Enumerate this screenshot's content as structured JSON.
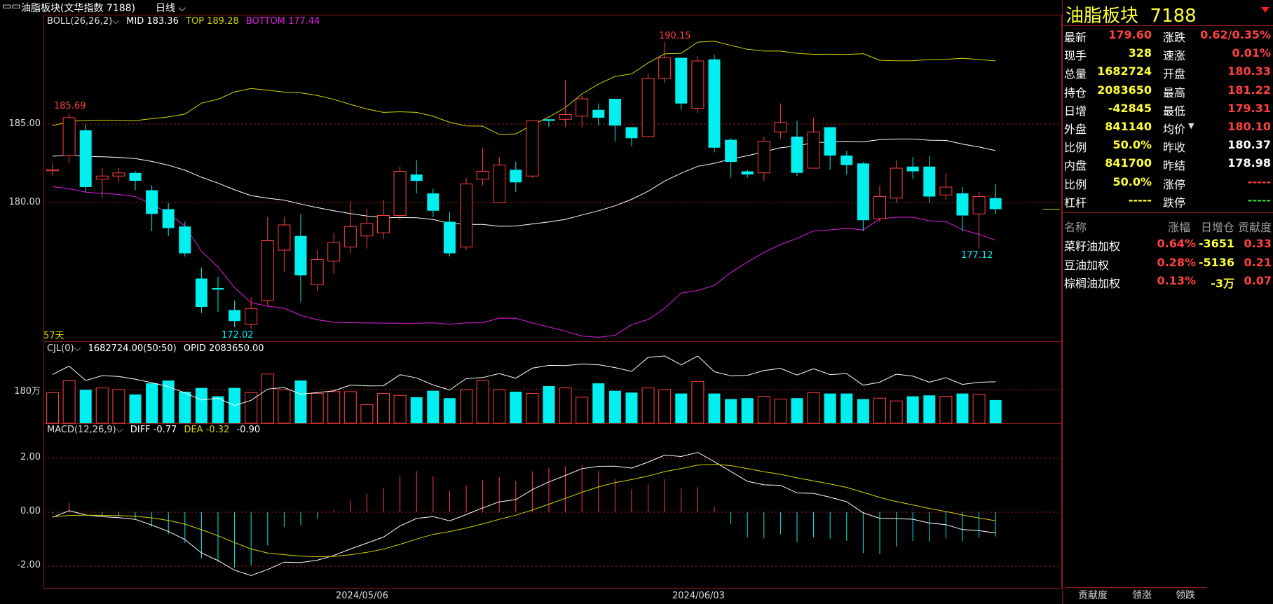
{
  "topbar": {
    "title": "油脂板块(文华指数 7188)",
    "period": "日线"
  },
  "main": {
    "boll_label": "BOLL(26,26,2)",
    "mid": "MID 183.36",
    "top": "TOP 189.28",
    "bottom": "BOTTOM 177.44",
    "y_ticks": [
      "185.00",
      "180.00"
    ],
    "annotations": {
      "high_label": "185.69",
      "peak_label": "190.15",
      "low_label": "172.02",
      "recent_low_label": "177.12",
      "days_label": "57天"
    }
  },
  "volume": {
    "label": "CJL(0)",
    "value": "1682724.00(50:50)",
    "opid": "OPID 2083650.00",
    "y_tick": "180万"
  },
  "macd": {
    "label": "MACD(12,26,9)",
    "diff": "DIFF -0.77",
    "dea": "DEA -0.32",
    "macd": "-0.90",
    "y_ticks": [
      "2.00",
      "0.00",
      "-2.00"
    ]
  },
  "x_axis": {
    "ticks": [
      "2024/05/06",
      "2024/06/03"
    ]
  },
  "quote": {
    "name": "油脂板块",
    "code": "7188",
    "left": [
      {
        "k": "最新",
        "v": "179.60",
        "c": "red"
      },
      {
        "k": "现手",
        "v": "328",
        "c": "yellow"
      },
      {
        "k": "总量",
        "v": "1682724",
        "c": "yellow"
      },
      {
        "k": "持仓",
        "v": "2083650",
        "c": "yellow"
      },
      {
        "k": "日增",
        "v": "-42845",
        "c": "yellow"
      },
      {
        "k": "外盘",
        "v": "841140",
        "c": "yellow"
      },
      {
        "k": "比例",
        "v": "50.0%",
        "c": "yellow"
      },
      {
        "k": "内盘",
        "v": "841700",
        "c": "yellow"
      },
      {
        "k": "比例",
        "v": "50.0%",
        "c": "yellow"
      },
      {
        "k": "杠杆",
        "v": "-----",
        "c": "yellow"
      }
    ],
    "right": [
      {
        "k": "涨跌",
        "v": "0.62/0.35%",
        "c": "red"
      },
      {
        "k": "速涨",
        "v": "0.01%",
        "c": "red"
      },
      {
        "k": "开盘",
        "v": "180.33",
        "c": "red"
      },
      {
        "k": "最高",
        "v": "181.22",
        "c": "red"
      },
      {
        "k": "最低",
        "v": "179.31",
        "c": "red"
      },
      {
        "k": "均价",
        "v": "180.10",
        "c": "red"
      },
      {
        "k": "昨收",
        "v": "180.37",
        "c": "white"
      },
      {
        "k": "昨结",
        "v": "178.98",
        "c": "white"
      },
      {
        "k": "涨停",
        "v": "-----",
        "c": "red"
      },
      {
        "k": "跌停",
        "v": "-----",
        "c": "green"
      }
    ]
  },
  "components": {
    "headers": [
      "名称",
      "涨幅",
      "日增仓",
      "贡献度"
    ],
    "rows": [
      {
        "name": "菜籽油加权",
        "chg": "0.64%",
        "oi": "-3651",
        "contrib": "0.33"
      },
      {
        "name": "豆油加权",
        "chg": "0.28%",
        "oi": "-5136",
        "contrib": "0.21"
      },
      {
        "name": "棕榈油加权",
        "chg": "0.13%",
        "oi": "-3万",
        "contrib": "0.07"
      }
    ]
  },
  "tabs": [
    "贡献度",
    "领涨",
    "领跌"
  ],
  "colors": {
    "up": "#ff4040",
    "down": "#00f0f0",
    "mid_line": "#ffffff",
    "top_line": "#d4d400",
    "bottom_line": "#e020e0",
    "dea_line": "#d4d400",
    "frame": "#8b1a1a"
  },
  "chart_data": [
    {
      "type": "candlestick",
      "title": "BOLL(26,26,2)",
      "ylim": [
        170.5,
        191.5
      ],
      "y_ticks": [
        185,
        180
      ],
      "candles": [
        [
          182.1,
          182.1,
          182.5,
          181.7
        ],
        [
          183.0,
          185.4,
          185.7,
          182.5
        ],
        [
          184.6,
          181.0,
          185.0,
          180.7
        ],
        [
          181.5,
          181.7,
          182.2,
          180.3
        ],
        [
          181.7,
          181.9,
          182.2,
          181.3
        ],
        [
          181.9,
          181.4,
          182.0,
          180.8
        ],
        [
          180.8,
          179.3,
          181.1,
          178.2
        ],
        [
          179.6,
          178.4,
          180.0,
          177.9
        ],
        [
          178.5,
          176.8,
          178.8,
          176.6
        ],
        [
          175.2,
          173.4,
          175.9,
          173.0
        ],
        [
          174.6,
          174.5,
          175.3,
          173.1
        ],
        [
          173.2,
          172.5,
          173.8,
          172.1
        ],
        [
          172.3,
          173.3,
          174.0,
          172.0
        ],
        [
          173.8,
          177.6,
          179.1,
          173.5
        ],
        [
          177.0,
          178.6,
          179.1,
          175.6
        ],
        [
          177.9,
          175.4,
          179.3,
          173.7
        ],
        [
          174.8,
          176.4,
          177.0,
          174.4
        ],
        [
          176.3,
          177.5,
          178.1,
          175.5
        ],
        [
          177.2,
          178.5,
          180.1,
          176.8
        ],
        [
          177.9,
          178.7,
          179.6,
          177.1
        ],
        [
          178.1,
          179.2,
          180.2,
          177.7
        ],
        [
          179.2,
          182.0,
          182.3,
          178.9
        ],
        [
          181.8,
          181.4,
          182.7,
          180.6
        ],
        [
          180.6,
          179.5,
          180.9,
          179.1
        ],
        [
          178.8,
          176.8,
          179.4,
          176.6
        ],
        [
          177.2,
          181.2,
          181.6,
          177.0
        ],
        [
          181.5,
          182.0,
          183.5,
          181.1
        ],
        [
          180.0,
          182.4,
          182.9,
          180.0
        ],
        [
          182.1,
          181.3,
          182.6,
          180.7
        ],
        [
          181.7,
          185.2,
          185.2,
          181.6
        ],
        [
          185.3,
          185.2,
          185.3,
          184.8
        ],
        [
          185.3,
          185.6,
          187.8,
          184.8
        ],
        [
          185.5,
          186.6,
          186.8,
          184.8
        ],
        [
          185.9,
          185.4,
          186.3,
          184.9
        ],
        [
          186.6,
          184.9,
          186.6,
          183.9
        ],
        [
          184.8,
          184.1,
          184.7,
          183.6
        ],
        [
          184.2,
          187.9,
          188.2,
          184.2
        ],
        [
          187.9,
          189.2,
          190.2,
          187.6
        ],
        [
          189.2,
          186.3,
          189.2,
          185.9
        ],
        [
          186.0,
          189.0,
          189.3,
          185.7
        ],
        [
          189.1,
          183.5,
          189.4,
          183.2
        ],
        [
          184.0,
          182.6,
          184.1,
          181.6
        ],
        [
          182.0,
          181.8,
          182.1,
          181.6
        ],
        [
          181.9,
          183.9,
          184.2,
          181.4
        ],
        [
          184.5,
          185.1,
          186.3,
          184.1
        ],
        [
          184.2,
          181.9,
          185.2,
          181.7
        ],
        [
          182.2,
          184.5,
          185.4,
          182.2
        ],
        [
          184.8,
          183.0,
          184.8,
          182.1
        ],
        [
          183.0,
          182.4,
          183.3,
          181.8
        ],
        [
          182.5,
          178.9,
          182.6,
          178.2
        ],
        [
          179.0,
          180.4,
          181.1,
          178.8
        ],
        [
          180.3,
          182.2,
          182.7,
          180.0
        ],
        [
          182.3,
          182.0,
          182.9,
          181.5
        ],
        [
          182.3,
          180.4,
          183.0,
          180.0
        ],
        [
          180.5,
          181.0,
          181.9,
          180.2
        ],
        [
          180.6,
          179.2,
          181.0,
          178.2
        ],
        [
          179.3,
          180.4,
          180.7,
          177.1
        ],
        [
          180.3,
          179.6,
          181.2,
          179.3
        ]
      ],
      "boll_mid_end": 183.36,
      "boll_top_end": 189.28,
      "boll_bottom_end": 177.44
    },
    {
      "type": "bar",
      "title": "CJL(0)",
      "y_tick_label": "180万",
      "values": [
        1.65,
        2.3,
        1.8,
        1.9,
        1.8,
        1.55,
        2.15,
        2.3,
        1.7,
        1.9,
        1.45,
        1.9,
        1.65,
        2.65,
        1.8,
        2.3,
        1.6,
        1.7,
        1.7,
        1.0,
        1.6,
        1.5,
        1.4,
        1.75,
        1.35,
        1.8,
        2.3,
        1.8,
        1.7,
        1.6,
        2.0,
        1.9,
        1.4,
        2.15,
        1.75,
        1.65,
        1.9,
        1.8,
        1.6,
        2.25,
        1.6,
        1.3,
        1.35,
        1.45,
        1.3,
        1.35,
        1.65,
        1.6,
        1.6,
        1.3,
        1.35,
        1.2,
        1.45,
        1.5,
        1.45,
        1.6,
        1.55,
        1.25
      ]
    },
    {
      "type": "line",
      "title": "MACD(12,26,9)",
      "ylim": [
        -2.8,
        3.2
      ],
      "y_ticks": [
        2,
        0,
        -2
      ],
      "diff_end": -0.77,
      "dea_end": -0.32,
      "macd_end": -0.9
    }
  ]
}
